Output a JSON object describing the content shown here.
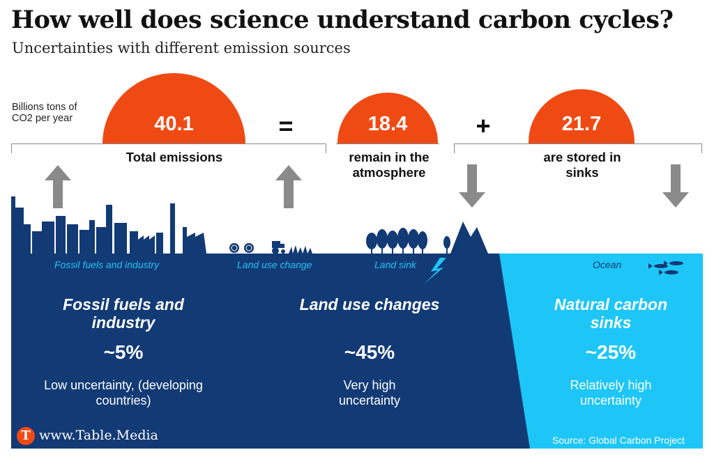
{
  "header": {
    "title": "How well does science understand carbon cycles?",
    "subtitle": "Uncertainties with different emission sources"
  },
  "unit_label": "Billions tons of CO2 per year",
  "equation": {
    "total": {
      "value": "40.1",
      "label": "Total emissions"
    },
    "equals": "=",
    "atmosphere": {
      "value": "18.4",
      "label": "remain in the atmosphere"
    },
    "plus": "+",
    "sinks": {
      "value": "21.7",
      "label": "are stored in sinks"
    }
  },
  "band_labels": {
    "fossil": "Fossil fuels and industry",
    "land_use": "Land use change",
    "land_sink": "Land sink",
    "ocean": "Ocean"
  },
  "sections": [
    {
      "title": "Fossil fuels and industry",
      "percent": "~5%",
      "description": "Low uncertainty, (developing countries)"
    },
    {
      "title": "Land use changes",
      "percent": "~45%",
      "description": "Very high uncertainty"
    },
    {
      "title": "Natural carbon sinks",
      "percent": "~25%",
      "description": "Relatively high uncertainty"
    }
  ],
  "footer": {
    "logo_letter": "T",
    "website": "www.Table.Media",
    "source": "Source: Global Carbon Project"
  },
  "colors": {
    "accent": "#f04a14",
    "navy": "#123a75",
    "cyan": "#1ec6f7",
    "arrow": "#8a8a8a"
  }
}
